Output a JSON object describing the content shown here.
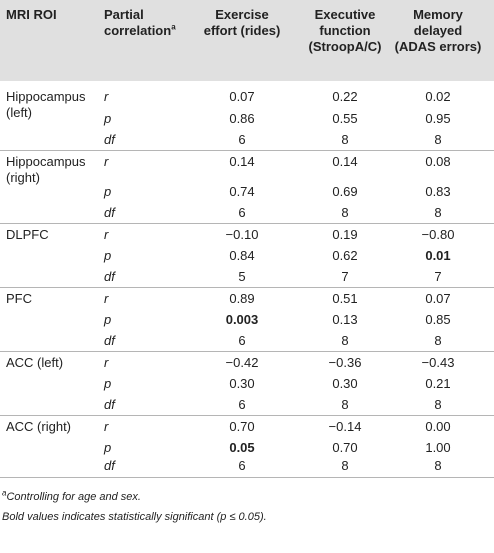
{
  "header": {
    "col0": "MRI ROI",
    "col1_line1": "Partial",
    "col1_line2": "correlation",
    "col1_sup": "a",
    "col2_line1": "Exercise",
    "col2_line2": "effort (rides)",
    "col3_line1": "Executive",
    "col3_line2": "function",
    "col3_line3": "(StroopA/C)",
    "col4_line1": "Memory",
    "col4_line2": "delayed",
    "col4_line3": "(ADAS errors)"
  },
  "groups": [
    {
      "roi_lines": [
        "Hippocampus",
        "(left)"
      ],
      "rows": [
        {
          "stat": "r",
          "v1": "0.07",
          "v2": "0.22",
          "v3": "0.02"
        },
        {
          "stat": "p",
          "v1": "0.86",
          "v2": "0.55",
          "v3": "0.95"
        },
        {
          "stat": "df",
          "v1": "6",
          "v2": "8",
          "v3": "8"
        }
      ]
    },
    {
      "roi_lines": [
        "Hippocampus",
        "(right)"
      ],
      "rows": [
        {
          "stat": "r",
          "v1": "0.14",
          "v2": "0.14",
          "v3": "0.08"
        },
        {
          "stat": "p",
          "v1": "0.74",
          "v2": "0.69",
          "v3": "0.83"
        },
        {
          "stat": "df",
          "v1": "6",
          "v2": "8",
          "v3": "8"
        }
      ]
    },
    {
      "roi_lines": [
        "DLPFC"
      ],
      "rows": [
        {
          "stat": "r",
          "v1": "−0.10",
          "v2": "0.19",
          "v3": "−0.80"
        },
        {
          "stat": "p",
          "v1": "0.84",
          "v2": "0.62",
          "v3": "0.01"
        },
        {
          "stat": "df",
          "v1": "5",
          "v2": "7",
          "v3": "7"
        }
      ]
    },
    {
      "roi_lines": [
        "PFC"
      ],
      "rows": [
        {
          "stat": "r",
          "v1": "0.89",
          "v2": "0.51",
          "v3": "0.07"
        },
        {
          "stat": "p",
          "v1": "0.003",
          "v2": "0.13",
          "v3": "0.85"
        },
        {
          "stat": "df",
          "v1": "6",
          "v2": "8",
          "v3": "8"
        }
      ]
    },
    {
      "roi_lines": [
        "ACC (left)"
      ],
      "rows": [
        {
          "stat": "r",
          "v1": "−0.42",
          "v2": "−0.36",
          "v3": "−0.43"
        },
        {
          "stat": "p",
          "v1": "0.30",
          "v2": "0.30",
          "v3": "0.21"
        },
        {
          "stat": "df",
          "v1": "6",
          "v2": "8",
          "v3": "8"
        }
      ]
    },
    {
      "roi_lines": [
        "ACC (right)"
      ],
      "rows": [
        {
          "stat": "r",
          "v1": "0.70",
          "v2": "−0.14",
          "v3": "0.00"
        },
        {
          "stat": "p",
          "v1": "0.05",
          "v2": "0.70",
          "v3": "1.00"
        },
        {
          "stat": "df",
          "v1": "6",
          "v2": "8",
          "v3": "8"
        }
      ]
    }
  ],
  "footnotes": {
    "note_a_sup": "a",
    "note_a": "Controlling for age and sex.",
    "note_bold": "Bold values indicates statistically significant (p ≤ 0.05)."
  }
}
